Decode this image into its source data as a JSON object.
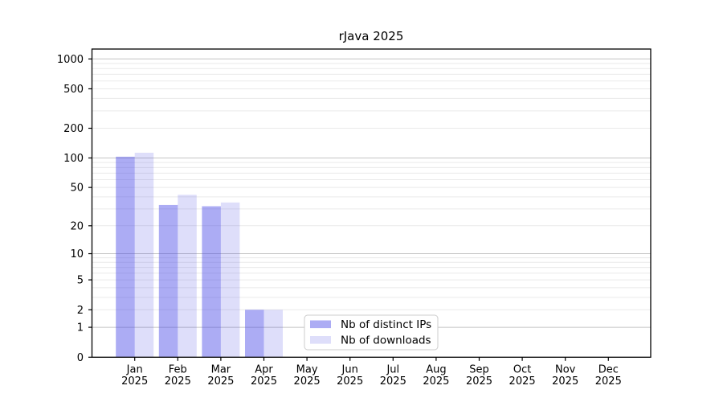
{
  "chart_data": {
    "type": "bar",
    "title": "rJava 2025",
    "year_label": "2025",
    "categories": [
      "Jan",
      "Feb",
      "Mar",
      "Apr",
      "May",
      "Jun",
      "Jul",
      "Aug",
      "Sep",
      "Oct",
      "Nov",
      "Dec"
    ],
    "series": [
      {
        "name": "Nb of distinct IPs",
        "color": "rgba(70,70,230,0.45)",
        "values": [
          103,
          33,
          32,
          2,
          0,
          0,
          0,
          0,
          0,
          0,
          0,
          0
        ]
      },
      {
        "name": "Nb of downloads",
        "color": "rgba(70,70,230,0.18)",
        "values": [
          113,
          42,
          35,
          2,
          0,
          0,
          0,
          0,
          0,
          0,
          0,
          0
        ]
      }
    ],
    "y_ticks": [
      0,
      1,
      2,
      5,
      10,
      20,
      50,
      100,
      200,
      500,
      1000
    ],
    "y_scale": "log10(value+1)",
    "ylim": [
      0,
      1001
    ],
    "grid": "horizontal",
    "legend_position": "inside-bottom-center"
  },
  "colors": {
    "major_grid": "#c4c4c4",
    "minor_grid": "#eaeaea",
    "spine": "#000000",
    "tick_text": "#000000",
    "legend_border": "#cccccc",
    "legend_bg": "#ffffff"
  }
}
